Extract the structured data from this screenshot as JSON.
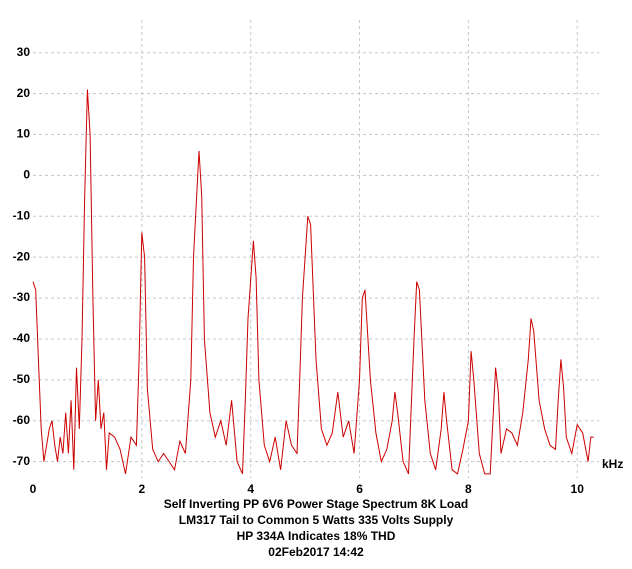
{
  "chart_data": {
    "type": "line",
    "caption": [
      "Self Inverting PP 6V6 Power Stage Spectrum 8K Load",
      "LM317 Tail to Common 5 Watts 335 Volts Supply",
      "HP 334A Indicates 18% THD",
      "02Feb2017  14:42"
    ],
    "x_label": "kHz",
    "xlim": [
      0,
      10.4
    ],
    "ylim": [
      -74,
      38
    ],
    "xticks": [
      0,
      2,
      4,
      6,
      8,
      10
    ],
    "yticks": [
      -70,
      -60,
      -50,
      -40,
      -30,
      -20,
      -10,
      0,
      10,
      20,
      30
    ],
    "grid": true,
    "series": [
      {
        "name": "Spectrum",
        "color": "#cc0000",
        "x": [
          0,
          0.05,
          0.1,
          0.15,
          0.2,
          0.25,
          0.3,
          0.35,
          0.4,
          0.45,
          0.5,
          0.55,
          0.6,
          0.65,
          0.7,
          0.75,
          0.8,
          0.85,
          0.9,
          0.95,
          1.0,
          1.05,
          1.1,
          1.15,
          1.2,
          1.25,
          1.3,
          1.35,
          1.4,
          1.5,
          1.6,
          1.7,
          1.8,
          1.9,
          1.95,
          2.0,
          2.05,
          2.1,
          2.2,
          2.3,
          2.4,
          2.5,
          2.6,
          2.7,
          2.8,
          2.9,
          2.95,
          3.05,
          3.1,
          3.15,
          3.25,
          3.35,
          3.45,
          3.55,
          3.65,
          3.75,
          3.85,
          3.9,
          3.95,
          4.05,
          4.1,
          4.15,
          4.25,
          4.35,
          4.45,
          4.55,
          4.65,
          4.75,
          4.85,
          4.9,
          4.95,
          5.05,
          5.1,
          5.2,
          5.3,
          5.4,
          5.5,
          5.6,
          5.7,
          5.8,
          5.9,
          6.0,
          6.05,
          6.1,
          6.2,
          6.3,
          6.4,
          6.5,
          6.6,
          6.65,
          6.7,
          6.8,
          6.9,
          7.0,
          7.05,
          7.1,
          7.2,
          7.3,
          7.4,
          7.5,
          7.55,
          7.6,
          7.7,
          7.8,
          7.9,
          8.0,
          8.05,
          8.1,
          8.2,
          8.3,
          8.4,
          8.45,
          8.5,
          8.55,
          8.6,
          8.7,
          8.8,
          8.9,
          9.0,
          9.1,
          9.15,
          9.2,
          9.3,
          9.4,
          9.5,
          9.6,
          9.65,
          9.7,
          9.75,
          9.8,
          9.9,
          10.0,
          10.1,
          10.2,
          10.25,
          10.3
        ],
        "values": [
          -26,
          -28,
          -45,
          -62,
          -70,
          -66,
          -62,
          -60,
          -66,
          -70,
          -64,
          -68,
          -58,
          -68,
          -55,
          -72,
          -47,
          -62,
          -40,
          -5,
          21,
          10,
          -30,
          -60,
          -50,
          -62,
          -58,
          -72,
          -63,
          -64,
          -67,
          -73,
          -64,
          -66,
          -45,
          -14,
          -20,
          -52,
          -67,
          -70,
          -68,
          -70,
          -72,
          -65,
          -68,
          -50,
          -20,
          6,
          -5,
          -40,
          -58,
          -64,
          -60,
          -66,
          -55,
          -70,
          -73,
          -55,
          -35,
          -16,
          -25,
          -50,
          -66,
          -70,
          -64,
          -72,
          -60,
          -66,
          -68,
          -50,
          -30,
          -10,
          -12,
          -45,
          -62,
          -66,
          -63,
          -53,
          -64,
          -60,
          -68,
          -50,
          -30,
          -28,
          -50,
          -63,
          -70,
          -67,
          -60,
          -53,
          -58,
          -70,
          -73,
          -40,
          -26,
          -28,
          -55,
          -68,
          -72,
          -62,
          -53,
          -60,
          -72,
          -73,
          -67,
          -60,
          -43,
          -50,
          -68,
          -73,
          -73,
          -60,
          -47,
          -53,
          -68,
          -62,
          -63,
          -66,
          -58,
          -45,
          -35,
          -38,
          -55,
          -62,
          -66,
          -67,
          -55,
          -45,
          -52,
          -64,
          -68,
          -61,
          -63,
          -70,
          -64,
          -64
        ]
      }
    ]
  }
}
